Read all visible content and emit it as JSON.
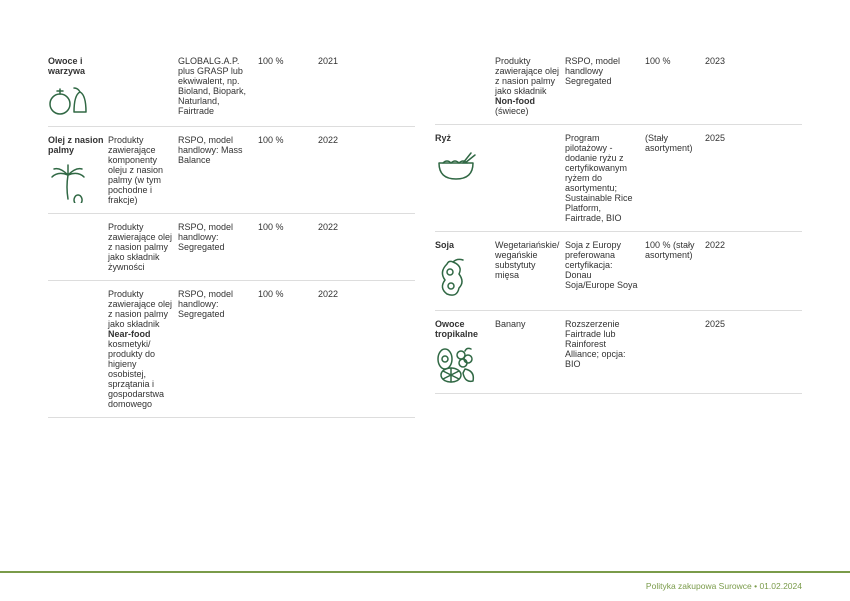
{
  "colors": {
    "icon_stroke": "#306844",
    "footer_rule": "#7a9b4a",
    "footer_text": "#7a9b4a",
    "border": "#dddddd"
  },
  "left": [
    {
      "category": "Owoce i warzywa",
      "icon": "fruit-veg",
      "desc": "",
      "cert": "GLOBALG.A.P. plus GRASP lub ekwiwalent, np. Bioland, Biopark, Naturland, Fairtrade",
      "pct": "100 %",
      "year": "2021"
    },
    {
      "category": "Olej z nasion palmy",
      "icon": "palm",
      "desc": "Produkty zawierające komponenty oleju z nasion palmy (w tym pochodne i frakcje)",
      "cert": "RSPO, model handlowy: Mass Balance",
      "pct": "100 %",
      "year": "2022"
    },
    {
      "category": "",
      "icon": "",
      "desc": "Produkty zawierające olej z nasion palmy jako składnik żywności",
      "cert": "RSPO, model handlowy: Segregated",
      "pct": "100 %",
      "year": "2022"
    },
    {
      "category": "",
      "icon": "",
      "desc_html": "Produkty zawierające olej z nasion palmy jako składnik <b>Near-food</b> kosmetyki/ produkty do higieny osobistej, sprzątania i gospodarstwa domowego",
      "cert": "RSPO, model handlowy: Segregated",
      "pct": "100 %",
      "year": "2022"
    }
  ],
  "right": [
    {
      "category": "",
      "icon": "",
      "desc_html": "Produkty zawierające olej z nasion palmy jako składnik <b>Non-food</b> (świece)",
      "cert": "RSPO, model handlowy Segregated",
      "pct": "100 %",
      "year": "2023"
    },
    {
      "category": "Ryż",
      "icon": "rice",
      "desc": "",
      "cert": "Program pilotażowy - dodanie ryżu z certyfikowanym ryżem do asortymentu; Sustainable Rice Platform, Fairtrade, BIO",
      "pct": "(Stały asortyment)",
      "year": "2025"
    },
    {
      "category": "Soja",
      "icon": "soy",
      "desc": "Wegetariańskie/ wegańskie substytuty mięsa",
      "cert": "Soja z Europy preferowana certyfikacja: Donau Soja/Europe Soya",
      "pct": "100 % (stały asortyment)",
      "year": "2022"
    },
    {
      "category": "Owoce tropikalne",
      "icon": "tropical",
      "desc": "Banany",
      "cert": "Rozszerzenie Fairtrade lub Rainforest Alliance; opcja: BIO",
      "pct": "",
      "year": "2025"
    }
  ],
  "footer": "Polityka zakupowa Surowce • 01.02.2024"
}
